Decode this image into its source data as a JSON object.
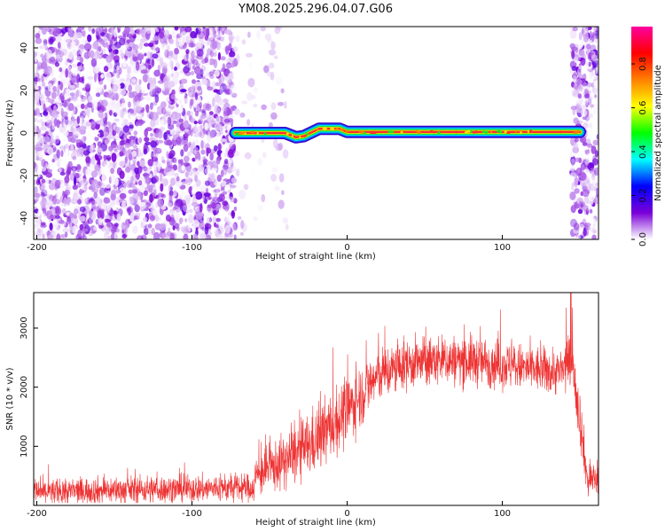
{
  "chart_data": [
    {
      "type": "heatmap",
      "title": "YM08.2025.296.04.07.G06",
      "xlabel": "Height of straight line (km)",
      "ylabel": "Frequency (Hz)",
      "xlim": [
        -202,
        162
      ],
      "ylim": [
        -50,
        50
      ],
      "xticks": [
        -200,
        -100,
        0,
        100
      ],
      "yticks": [
        -40,
        -20,
        0,
        20,
        40
      ],
      "colorbar": {
        "label": "Normalized spectral amplitude",
        "range": [
          0,
          0.97
        ],
        "ticks": [
          0.0,
          0.2,
          0.4,
          0.6,
          0.8
        ],
        "colors": [
          "#ffffff",
          "#7a00d8",
          "#0000ff",
          "#00ffff",
          "#00ff00",
          "#ffff00",
          "#ff8000",
          "#ff0000",
          "#ff00a0"
        ]
      },
      "noise_regions": [
        {
          "x_from": -202,
          "x_to": -72,
          "density": "high"
        },
        {
          "x_from": -72,
          "x_to": -38,
          "density": "sparse"
        },
        {
          "x_from": 145,
          "x_to": 162,
          "density": "high"
        }
      ],
      "signal_track": {
        "x_start": -72,
        "x_end": 150,
        "points": [
          {
            "x": -72,
            "y": 0.0
          },
          {
            "x": -40,
            "y": 0.0
          },
          {
            "x": -33,
            "y": -2.0
          },
          {
            "x": -28,
            "y": -1.5
          },
          {
            "x": -18,
            "y": 2.0
          },
          {
            "x": -5,
            "y": 2.0
          },
          {
            "x": 0,
            "y": 0.5
          },
          {
            "x": 150,
            "y": 0.5
          }
        ]
      }
    },
    {
      "type": "line",
      "title": "",
      "xlabel": "Height of straight line (km)",
      "ylabel": "SNR (10 * v/v)",
      "xlim": [
        -202,
        162
      ],
      "ylim": [
        0,
        3600
      ],
      "xticks": [
        -200,
        -100,
        0,
        100
      ],
      "yticks": [
        1000,
        2000,
        3000
      ],
      "color": "#ee3333",
      "envelope": [
        {
          "x": -202,
          "mean": 220,
          "spread": 320
        },
        {
          "x": -150,
          "mean": 260,
          "spread": 330
        },
        {
          "x": -100,
          "mean": 280,
          "spread": 330
        },
        {
          "x": -60,
          "mean": 300,
          "spread": 340
        },
        {
          "x": -59,
          "mean": 500,
          "spread": 500
        },
        {
          "x": -40,
          "mean": 750,
          "spread": 650
        },
        {
          "x": -20,
          "mean": 1100,
          "spread": 800
        },
        {
          "x": 0,
          "mean": 1600,
          "spread": 800
        },
        {
          "x": 20,
          "mean": 2200,
          "spread": 650
        },
        {
          "x": 40,
          "mean": 2400,
          "spread": 600
        },
        {
          "x": 60,
          "mean": 2450,
          "spread": 600
        },
        {
          "x": 80,
          "mean": 2450,
          "spread": 600
        },
        {
          "x": 100,
          "mean": 2380,
          "spread": 580
        },
        {
          "x": 120,
          "mean": 2300,
          "spread": 560
        },
        {
          "x": 138,
          "mean": 2250,
          "spread": 560
        },
        {
          "x": 145,
          "mean": 2450,
          "spread": 700
        },
        {
          "x": 150,
          "mean": 1500,
          "spread": 700
        },
        {
          "x": 155,
          "mean": 400,
          "spread": 400
        },
        {
          "x": 162,
          "mean": 500,
          "spread": 500
        }
      ]
    }
  ]
}
